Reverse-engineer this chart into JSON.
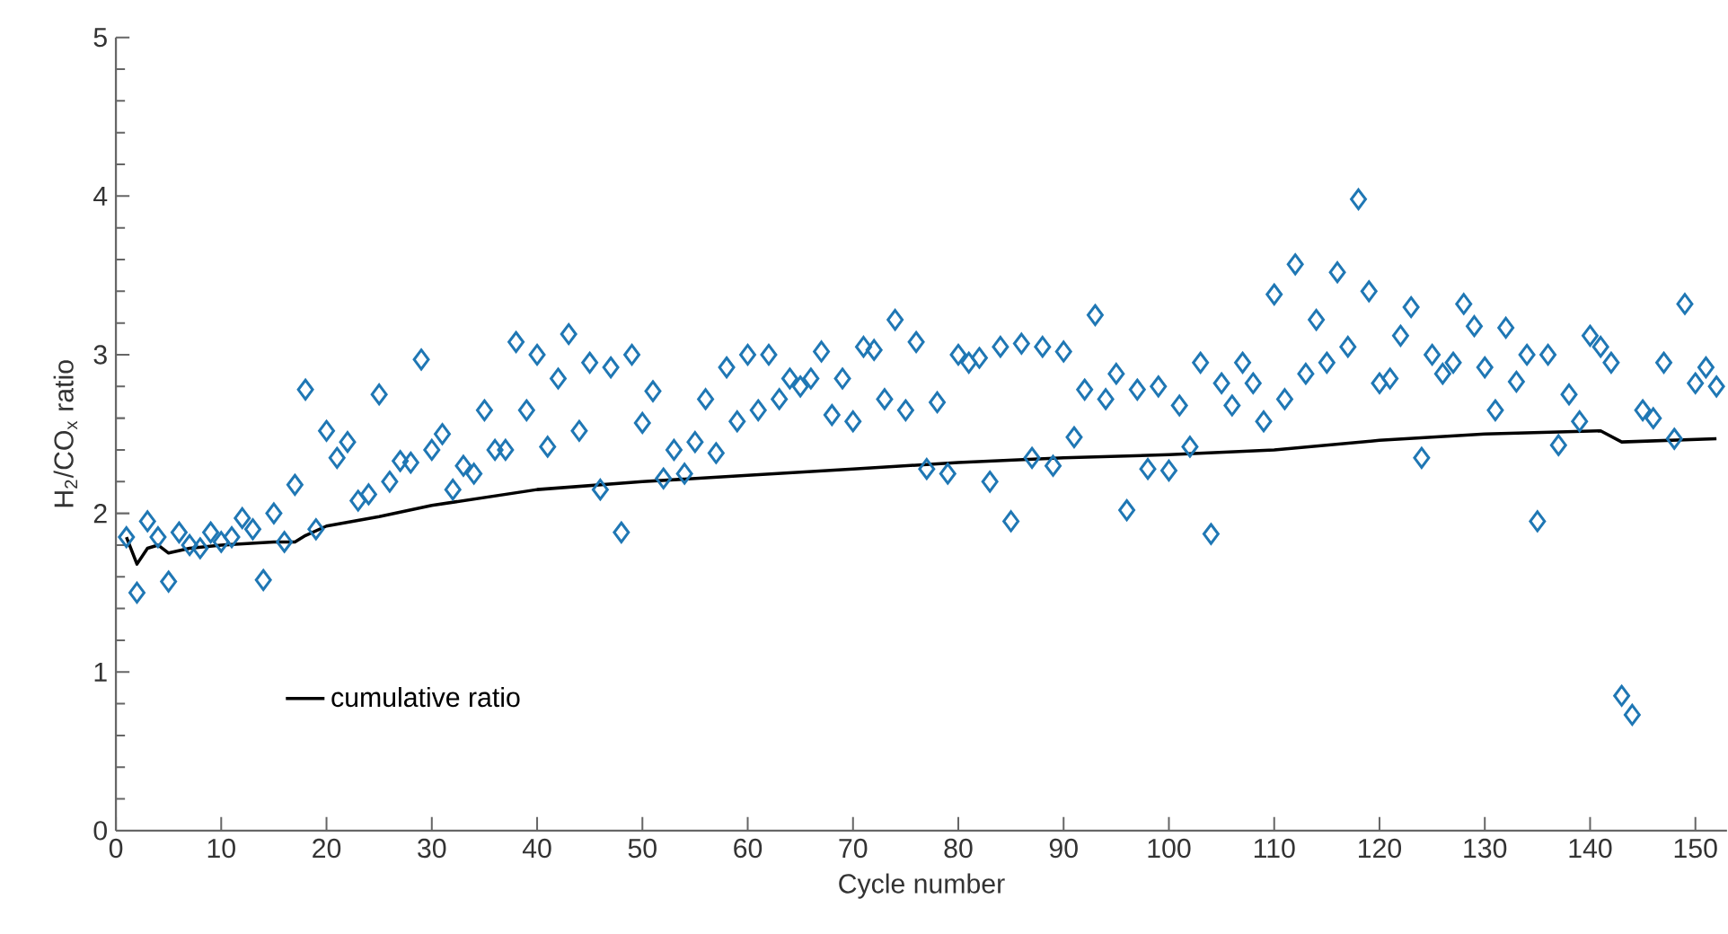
{
  "chart_data": {
    "type": "scatter",
    "xlabel": "Cycle number",
    "ylabel": "H$_{2}$/CO$_{x}$ ratio",
    "xlim": [
      0,
      153
    ],
    "ylim": [
      0,
      5
    ],
    "xticks": [
      0,
      10,
      20,
      30,
      40,
      50,
      60,
      70,
      80,
      90,
      100,
      110,
      120,
      130,
      140,
      150
    ],
    "yticks": [
      0,
      1,
      2,
      3,
      4,
      5
    ],
    "legend": "bottom left",
    "grid": false,
    "series": [
      {
        "marker": "diamond",
        "color": "#1f77b4",
        "x": [
          1,
          2,
          3,
          4,
          5,
          6,
          7,
          8,
          9,
          10,
          11,
          12,
          13,
          14,
          15,
          16,
          17,
          18,
          19,
          20,
          21,
          22,
          23,
          24,
          25,
          26,
          27,
          28,
          29,
          30,
          31,
          32,
          33,
          34,
          35,
          36,
          37,
          38,
          39,
          40,
          41,
          42,
          43,
          44,
          45,
          46,
          47,
          48,
          49,
          50,
          51,
          52,
          53,
          54,
          55,
          56,
          57,
          58,
          59,
          60,
          61,
          62,
          63,
          64,
          65,
          66,
          67,
          68,
          69,
          70,
          71,
          72,
          73,
          74,
          75,
          76,
          77,
          78,
          79,
          80,
          81,
          82,
          83,
          84,
          85,
          86,
          87,
          88,
          89,
          90,
          91,
          92,
          93,
          94,
          95,
          96,
          97,
          98,
          99,
          100,
          101,
          102,
          103,
          104,
          105,
          106,
          107,
          108,
          109,
          110,
          111,
          112,
          113,
          114,
          115,
          116,
          117,
          118,
          119,
          120,
          121,
          122,
          123,
          124,
          125,
          126,
          127,
          128,
          129,
          130,
          131,
          132,
          133,
          134,
          135,
          136,
          137,
          138,
          139,
          140,
          141,
          142,
          143,
          144,
          145,
          146,
          147,
          148,
          149,
          150,
          151,
          152
        ],
        "values": [
          1.85,
          1.5,
          1.95,
          1.85,
          1.57,
          1.88,
          1.8,
          1.78,
          1.88,
          1.82,
          1.85,
          1.97,
          1.9,
          1.58,
          2.0,
          1.82,
          2.18,
          2.78,
          1.9,
          2.52,
          2.35,
          2.45,
          2.08,
          2.12,
          2.75,
          2.2,
          2.33,
          2.32,
          2.97,
          2.4,
          2.5,
          2.15,
          2.3,
          2.25,
          2.65,
          2.4,
          2.4,
          3.08,
          2.65,
          3.0,
          2.42,
          2.85,
          3.13,
          2.52,
          2.95,
          2.15,
          2.92,
          1.88,
          3.0,
          2.57,
          2.77,
          2.22,
          2.4,
          2.25,
          2.45,
          2.72,
          2.38,
          2.92,
          2.58,
          3.0,
          2.65,
          3.0,
          2.72,
          2.85,
          2.8,
          2.85,
          3.02,
          2.62,
          2.85,
          2.58,
          3.05,
          3.03,
          2.72,
          3.22,
          2.65,
          3.08,
          2.28,
          2.7,
          2.25,
          3.0,
          2.95,
          2.98,
          2.2,
          3.05,
          1.95,
          3.07,
          2.35,
          3.05,
          2.3,
          3.02,
          2.48,
          2.78,
          3.25,
          2.72,
          2.88,
          2.02,
          2.78,
          2.28,
          2.8,
          2.27,
          2.68,
          2.42,
          2.95,
          1.87,
          2.82,
          2.68,
          2.95,
          2.82,
          2.58,
          3.38,
          2.72,
          3.57,
          2.88,
          3.22,
          2.95,
          3.52,
          3.05,
          3.98,
          3.4,
          2.82,
          2.85,
          3.12,
          3.3,
          2.35,
          3.0,
          2.88,
          2.95,
          3.32,
          3.18,
          2.92,
          2.65,
          3.17,
          2.83,
          3.0,
          1.95,
          3.0,
          2.43,
          2.75,
          2.58,
          3.12,
          3.05,
          2.95,
          0.85,
          0.73,
          2.65,
          2.6,
          2.95,
          2.47,
          3.32,
          2.82,
          2.92,
          2.8
        ]
      },
      {
        "type": "line",
        "name": "cumulative ratio",
        "color": "#000000",
        "marker": "none",
        "line_style": "solid",
        "x": [
          1,
          2,
          3,
          4,
          5,
          7,
          10,
          15,
          17,
          18,
          20,
          25,
          30,
          40,
          50,
          60,
          70,
          80,
          90,
          100,
          110,
          120,
          130,
          141,
          143,
          152
        ],
        "values": [
          1.85,
          1.68,
          1.78,
          1.8,
          1.75,
          1.78,
          1.8,
          1.82,
          1.82,
          1.86,
          1.92,
          1.98,
          2.05,
          2.15,
          2.2,
          2.24,
          2.28,
          2.32,
          2.35,
          2.37,
          2.4,
          2.46,
          2.5,
          2.52,
          2.45,
          2.47
        ]
      }
    ]
  }
}
